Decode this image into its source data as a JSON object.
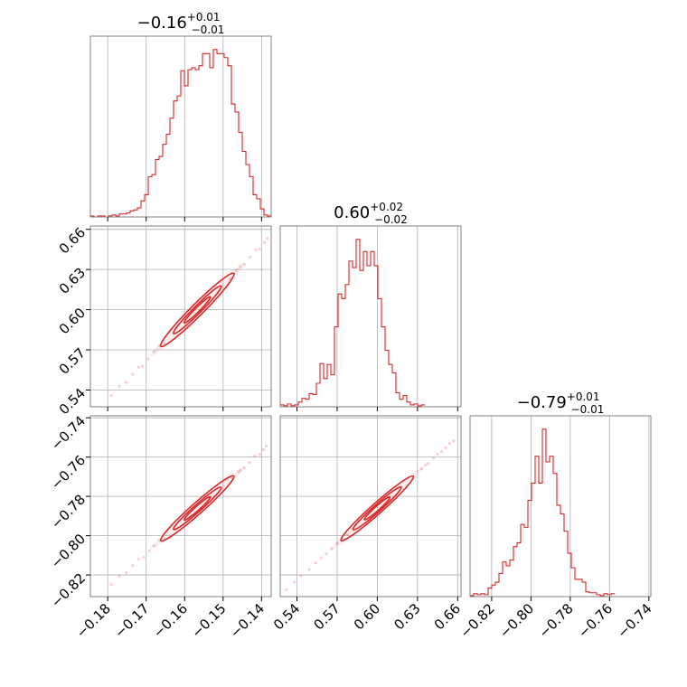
{
  "chart_data": {
    "type": "corner",
    "color": "#d62728",
    "grid": true,
    "parameters": [
      {
        "index": 0,
        "title_value": "−0.16",
        "title_plus": "+0.01",
        "title_minus": "−0.01",
        "range": [
          -0.1845,
          -0.1375
        ],
        "ticks": [
          -0.18,
          -0.17,
          -0.16,
          -0.15,
          -0.14
        ],
        "tick_labels": [
          "−0.18",
          "−0.17",
          "−0.16",
          "−0.15",
          "−0.14"
        ]
      },
      {
        "index": 1,
        "title_value": "0.60",
        "title_plus": "+0.02",
        "title_minus": "−0.02",
        "range": [
          0.5275,
          0.6625
        ],
        "ticks": [
          0.54,
          0.57,
          0.6,
          0.63,
          0.66
        ],
        "tick_labels": [
          "0.54",
          "0.57",
          "0.60",
          "0.63",
          "0.66"
        ]
      },
      {
        "index": 2,
        "title_value": "−0.79",
        "title_plus": "+0.01",
        "title_minus": "−0.01",
        "range": [
          -0.831,
          -0.739
        ],
        "ticks": [
          -0.82,
          -0.8,
          -0.78,
          -0.76,
          -0.74
        ],
        "tick_labels": [
          "−0.82",
          "−0.80",
          "−0.78",
          "−0.76",
          "−0.74"
        ]
      }
    ],
    "histograms": [
      {
        "param": 0,
        "bin_start": -0.1845,
        "bin_width": 0.00094,
        "counts": [
          1,
          0,
          1,
          1,
          0,
          1,
          2,
          1,
          3,
          3,
          4,
          6,
          7,
          9,
          16,
          22,
          40,
          42,
          57,
          60,
          72,
          82,
          98,
          115,
          120,
          145,
          130,
          146,
          148,
          146,
          150,
          162,
          162,
          148,
          166,
          162,
          162,
          158,
          150,
          112,
          104,
          84,
          65,
          52,
          40,
          22,
          18,
          8,
          2,
          1
        ]
      },
      {
        "param": 1,
        "bin_start": 0.5275,
        "bin_width": 0.0027,
        "counts": [
          2,
          1,
          3,
          1,
          2,
          5,
          9,
          8,
          14,
          13,
          25,
          46,
          30,
          45,
          34,
          85,
          120,
          115,
          130,
          155,
          148,
          178,
          145,
          165,
          150,
          165,
          150,
          115,
          85,
          60,
          45,
          36,
          15,
          8,
          12,
          5,
          2,
          3,
          1,
          2
        ]
      },
      {
        "param": 2,
        "bin_start": -0.831,
        "bin_width": 0.00184,
        "counts": [
          1,
          3,
          2,
          3,
          2,
          9,
          12,
          15,
          24,
          36,
          32,
          38,
          52,
          56,
          75,
          72,
          100,
          118,
          146,
          118,
          174,
          140,
          146,
          128,
          95,
          86,
          68,
          45,
          30,
          18,
          18,
          15,
          5,
          4,
          4,
          2,
          1,
          3,
          2,
          3
        ]
      }
    ],
    "pairs": [
      {
        "x_param": 0,
        "y_param": 1,
        "slope": 2.87,
        "x_center": -0.1567,
        "y_center": 0.5999,
        "contour_half_lengths_x": [
          0.0095,
          0.0062,
          0.0034
        ],
        "contour_widths_x": [
          0.0011,
          0.0007,
          0.0004
        ],
        "scatter_x": [
          -0.1823,
          -0.179,
          -0.177,
          -0.1752,
          -0.1735,
          -0.172,
          -0.171,
          -0.1695,
          -0.168,
          -0.1445,
          -0.143,
          -0.1415,
          -0.1405,
          -0.1392,
          -0.1385,
          -0.1482,
          -0.1465,
          -0.1665,
          -0.1652,
          -0.1455
        ]
      },
      {
        "x_param": 0,
        "y_param": 2,
        "slope": 1.735,
        "x_center": -0.1567,
        "y_center": -0.7861,
        "contour_half_lengths_x": [
          0.0095,
          0.0062,
          0.0034
        ],
        "contour_widths_x": [
          0.0011,
          0.0007,
          0.0004
        ],
        "scatter_x": [
          -0.1823,
          -0.179,
          -0.177,
          -0.1752,
          -0.1735,
          -0.172,
          -0.1706,
          -0.1692,
          -0.168,
          -0.1445,
          -0.1432,
          -0.1418,
          -0.1405,
          -0.1395,
          -0.1388,
          -0.1475,
          -0.146,
          -0.1665,
          -0.1652,
          -0.1455
        ]
      },
      {
        "x_param": 1,
        "y_param": 2,
        "slope": 0.606,
        "x_center": 0.5999,
        "y_center": -0.7861,
        "contour_half_lengths_x": [
          0.027,
          0.018,
          0.0095
        ],
        "contour_widths_x": [
          0.003,
          0.002,
          0.0012
        ],
        "scatter_x": [
          0.532,
          0.538,
          0.543,
          0.549,
          0.554,
          0.558,
          0.562,
          0.566,
          0.57,
          0.638,
          0.642,
          0.645,
          0.648,
          0.651,
          0.654,
          0.657,
          0.633,
          0.636,
          0.574,
          0.578
        ]
      }
    ]
  }
}
